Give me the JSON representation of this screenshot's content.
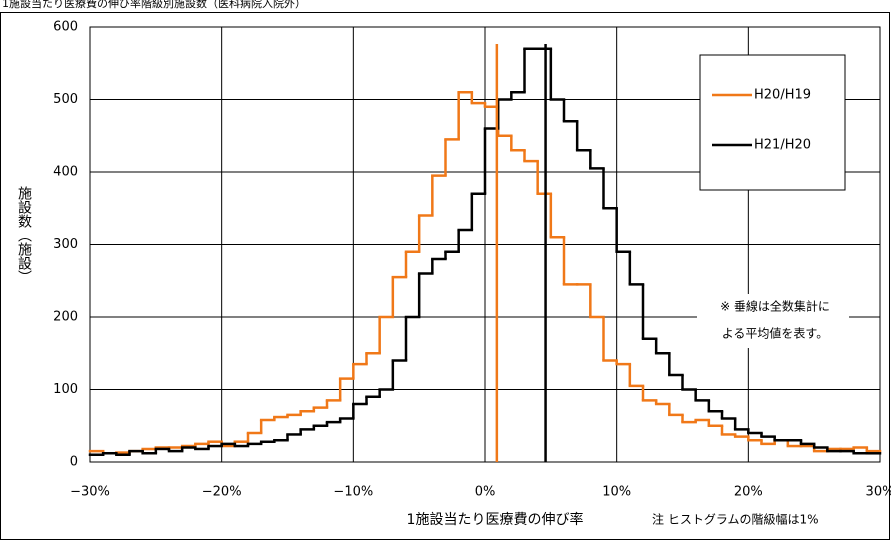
{
  "chart_data": {
    "type": "histogram",
    "title": "1施設当たり医療費の伸び率階級別施設数（医科病院入院外）",
    "x_label": "1施設当たり医療費の伸び率",
    "y_label": "施設数（施設）",
    "note": "注 ヒストグラムの階級幅は1%",
    "annotation": [
      "※ 垂線は全数集計に",
      "よる平均値を表す。"
    ],
    "bins": [
      -30,
      -29,
      -28,
      -27,
      -26,
      -25,
      -24,
      -23,
      -22,
      -21,
      -20,
      -19,
      -18,
      -17,
      -16,
      -15,
      -14,
      -13,
      -12,
      -11,
      -10,
      -9,
      -8,
      -7,
      -6,
      -5,
      -4,
      -3,
      -2,
      -1,
      0,
      1,
      2,
      3,
      4,
      5,
      6,
      7,
      8,
      9,
      10,
      11,
      12,
      13,
      14,
      15,
      16,
      17,
      18,
      19,
      20,
      21,
      22,
      23,
      24,
      25,
      26,
      27,
      28,
      29,
      30
    ],
    "series": [
      {
        "name": "H20/H19",
        "color": "#f07818",
        "mean": 0.9,
        "values": [
          15,
          12,
          13,
          15,
          18,
          20,
          20,
          22,
          25,
          28,
          22,
          28,
          40,
          58,
          62,
          65,
          70,
          75,
          85,
          115,
          135,
          150,
          200,
          255,
          290,
          340,
          395,
          445,
          510,
          495,
          490,
          450,
          430,
          415,
          370,
          310,
          245,
          245,
          200,
          140,
          135,
          105,
          85,
          80,
          65,
          55,
          58,
          50,
          38,
          35,
          30,
          25,
          30,
          22,
          22,
          15,
          18,
          18,
          20,
          15
        ]
      },
      {
        "name": "H21/H20",
        "color": "#000000",
        "mean": 4.6,
        "values": [
          10,
          12,
          10,
          15,
          12,
          18,
          15,
          20,
          18,
          22,
          25,
          22,
          25,
          28,
          30,
          38,
          45,
          50,
          55,
          60,
          80,
          90,
          100,
          140,
          200,
          260,
          280,
          290,
          320,
          370,
          460,
          500,
          510,
          570,
          570,
          500,
          470,
          430,
          405,
          350,
          290,
          245,
          170,
          150,
          120,
          100,
          85,
          70,
          60,
          45,
          40,
          35,
          30,
          30,
          25,
          20,
          15,
          15,
          12,
          12
        ]
      }
    ],
    "xlim": [
      -30,
      30
    ],
    "xticks": [
      {
        "value": -30,
        "label": "−30%"
      },
      {
        "value": -20,
        "label": "−20%"
      },
      {
        "value": -10,
        "label": "−10%"
      },
      {
        "value": 0,
        "label": "0%"
      },
      {
        "value": 10,
        "label": "10%"
      },
      {
        "value": 20,
        "label": "20%"
      },
      {
        "value": 30,
        "label": "30%"
      }
    ],
    "ylim": [
      0,
      600
    ],
    "yticks": [
      0,
      100,
      200,
      300,
      400,
      500,
      600
    ],
    "grid": true
  }
}
